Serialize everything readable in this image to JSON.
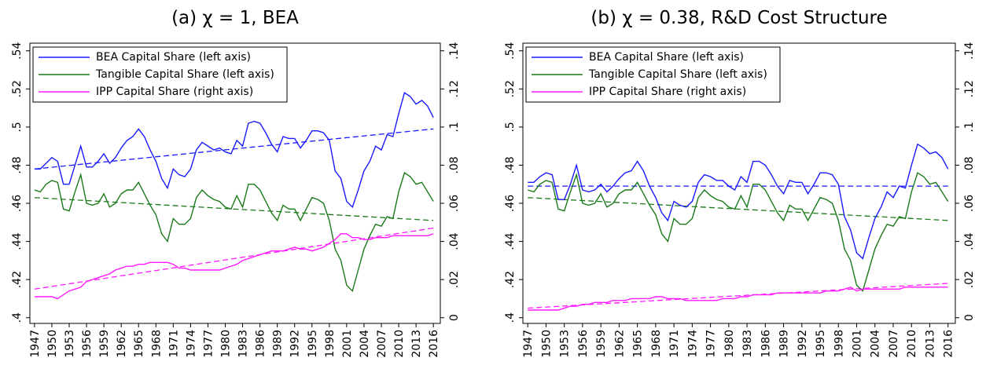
{
  "chart_data": [
    {
      "type": "line",
      "title": "(a) χ = 1, BEA",
      "x": [
        1947,
        1948,
        1949,
        1950,
        1951,
        1952,
        1953,
        1954,
        1955,
        1956,
        1957,
        1958,
        1959,
        1960,
        1961,
        1962,
        1963,
        1964,
        1965,
        1966,
        1967,
        1968,
        1969,
        1970,
        1971,
        1972,
        1973,
        1974,
        1975,
        1976,
        1977,
        1978,
        1979,
        1980,
        1981,
        1982,
        1983,
        1984,
        1985,
        1986,
        1987,
        1988,
        1989,
        1990,
        1991,
        1992,
        1993,
        1994,
        1995,
        1996,
        1997,
        1998,
        1999,
        2000,
        2001,
        2002,
        2003,
        2004,
        2005,
        2006,
        2007,
        2008,
        2009,
        2010,
        2011,
        2012,
        2013,
        2014,
        2015,
        2016
      ],
      "series": [
        {
          "name": "BEA Capital Share (left axis)",
          "color": "#1a1aff",
          "values": [
            0.478,
            0.478,
            0.481,
            0.484,
            0.482,
            0.47,
            0.47,
            0.48,
            0.49,
            0.479,
            0.479,
            0.482,
            0.486,
            0.481,
            0.484,
            0.489,
            0.493,
            0.495,
            0.499,
            0.495,
            0.488,
            0.482,
            0.473,
            0.468,
            0.478,
            0.475,
            0.474,
            0.478,
            0.488,
            0.492,
            0.49,
            0.488,
            0.489,
            0.487,
            0.486,
            0.493,
            0.49,
            0.502,
            0.503,
            0.502,
            0.497,
            0.491,
            0.487,
            0.495,
            0.494,
            0.494,
            0.489,
            0.493,
            0.498,
            0.498,
            0.497,
            0.493,
            0.477,
            0.473,
            0.461,
            0.458,
            0.467,
            0.477,
            0.482,
            0.49,
            0.488,
            0.496,
            0.495,
            0.507,
            0.518,
            0.516,
            0.512,
            0.514,
            0.511,
            0.505
          ]
        },
        {
          "name": "Tangible Capital Share (left axis)",
          "color": "#1a7a1a",
          "values": [
            0.467,
            0.466,
            0.47,
            0.472,
            0.471,
            0.457,
            0.456,
            0.466,
            0.475,
            0.46,
            0.459,
            0.46,
            0.465,
            0.458,
            0.46,
            0.465,
            0.467,
            0.467,
            0.471,
            0.465,
            0.459,
            0.454,
            0.444,
            0.44,
            0.452,
            0.449,
            0.449,
            0.452,
            0.463,
            0.467,
            0.464,
            0.462,
            0.461,
            0.458,
            0.457,
            0.464,
            0.458,
            0.47,
            0.47,
            0.467,
            0.461,
            0.455,
            0.451,
            0.459,
            0.457,
            0.457,
            0.451,
            0.457,
            0.463,
            0.462,
            0.46,
            0.451,
            0.436,
            0.43,
            0.417,
            0.414,
            0.425,
            0.436,
            0.443,
            0.449,
            0.448,
            0.453,
            0.452,
            0.466,
            0.476,
            0.474,
            0.47,
            0.471,
            0.466,
            0.461
          ]
        },
        {
          "name": "IPP Capital Share (right axis)",
          "color": "#ff1aff",
          "axis": "y2",
          "values": [
            0.011,
            0.011,
            0.011,
            0.011,
            0.01,
            0.012,
            0.014,
            0.015,
            0.016,
            0.019,
            0.02,
            0.021,
            0.022,
            0.023,
            0.025,
            0.026,
            0.027,
            0.027,
            0.028,
            0.028,
            0.029,
            0.029,
            0.029,
            0.029,
            0.028,
            0.026,
            0.026,
            0.025,
            0.025,
            0.025,
            0.025,
            0.025,
            0.025,
            0.026,
            0.027,
            0.028,
            0.03,
            0.031,
            0.032,
            0.033,
            0.034,
            0.035,
            0.035,
            0.035,
            0.036,
            0.037,
            0.036,
            0.036,
            0.035,
            0.036,
            0.037,
            0.039,
            0.041,
            0.044,
            0.044,
            0.042,
            0.042,
            0.041,
            0.041,
            0.042,
            0.042,
            0.042,
            0.043,
            0.043,
            0.043,
            0.043,
            0.043,
            0.043,
            0.043,
            0.044
          ]
        }
      ],
      "trends": [
        {
          "color": "#1a1aff",
          "x": [
            1947,
            2016
          ],
          "values": [
            0.478,
            0.499
          ]
        },
        {
          "color": "#1a7a1a",
          "x": [
            1947,
            2016
          ],
          "values": [
            0.463,
            0.451
          ]
        },
        {
          "color": "#ff1aff",
          "axis": "y2",
          "x": [
            1947,
            2016
          ],
          "values": [
            0.015,
            0.047
          ]
        }
      ],
      "xlim": [
        1946.2,
        2017.2
      ],
      "xticks": [
        1947,
        1950,
        1953,
        1956,
        1959,
        1962,
        1965,
        1968,
        1971,
        1974,
        1977,
        1980,
        1983,
        1986,
        1989,
        1992,
        1995,
        1998,
        2001,
        2004,
        2007,
        2010,
        2013,
        2016
      ],
      "ylim": [
        0.397,
        0.544
      ],
      "yticks": [
        {
          "value": 0.4,
          "label": ".4"
        },
        {
          "value": 0.42,
          "label": ".42"
        },
        {
          "value": 0.44,
          "label": ".44"
        },
        {
          "value": 0.46,
          "label": ".46"
        },
        {
          "value": 0.48,
          "label": ".48"
        },
        {
          "value": 0.5,
          "label": ".5"
        },
        {
          "value": 0.52,
          "label": ".52"
        },
        {
          "value": 0.54,
          "label": ".54"
        }
      ],
      "y2lim": [
        -0.003,
        0.144
      ],
      "y2ticks": [
        0,
        {
          "value": 0.02,
          "label": ".02"
        },
        {
          "value": 0.04,
          "label": ".04"
        },
        {
          "value": 0.06,
          "label": ".06"
        },
        {
          "value": 0.08,
          "label": ".08"
        },
        {
          "value": 0.1,
          "label": ".1"
        },
        {
          "value": 0.12,
          "label": ".12"
        },
        {
          "value": 0.14,
          "label": ".14"
        }
      ],
      "legend": "upper left"
    },
    {
      "type": "line",
      "title": "(b) χ = 0.38, R&D Cost Structure",
      "x": [
        1947,
        1948,
        1949,
        1950,
        1951,
        1952,
        1953,
        1954,
        1955,
        1956,
        1957,
        1958,
        1959,
        1960,
        1961,
        1962,
        1963,
        1964,
        1965,
        1966,
        1967,
        1968,
        1969,
        1970,
        1971,
        1972,
        1973,
        1974,
        1975,
        1976,
        1977,
        1978,
        1979,
        1980,
        1981,
        1982,
        1983,
        1984,
        1985,
        1986,
        1987,
        1988,
        1989,
        1990,
        1991,
        1992,
        1993,
        1994,
        1995,
        1996,
        1997,
        1998,
        1999,
        2000,
        2001,
        2002,
        2003,
        2004,
        2005,
        2006,
        2007,
        2008,
        2009,
        2010,
        2011,
        2012,
        2013,
        2014,
        2015,
        2016
      ],
      "series": [
        {
          "name": "BEA Capital Share (left axis)",
          "color": "#1a1aff",
          "values": [
            0.471,
            0.471,
            0.474,
            0.476,
            0.475,
            0.462,
            0.462,
            0.47,
            0.48,
            0.467,
            0.466,
            0.467,
            0.47,
            0.466,
            0.469,
            0.473,
            0.476,
            0.477,
            0.482,
            0.477,
            0.469,
            0.463,
            0.455,
            0.451,
            0.461,
            0.459,
            0.458,
            0.461,
            0.471,
            0.475,
            0.474,
            0.472,
            0.472,
            0.469,
            0.467,
            0.474,
            0.471,
            0.482,
            0.482,
            0.48,
            0.475,
            0.469,
            0.465,
            0.472,
            0.471,
            0.471,
            0.465,
            0.47,
            0.476,
            0.476,
            0.475,
            0.47,
            0.453,
            0.446,
            0.434,
            0.431,
            0.442,
            0.452,
            0.458,
            0.466,
            0.463,
            0.469,
            0.468,
            0.48,
            0.491,
            0.489,
            0.486,
            0.487,
            0.484,
            0.478
          ]
        },
        {
          "name": "Tangible Capital Share (left axis)",
          "color": "#1a7a1a",
          "values": [
            0.467,
            0.466,
            0.47,
            0.472,
            0.471,
            0.457,
            0.456,
            0.466,
            0.475,
            0.46,
            0.459,
            0.46,
            0.465,
            0.458,
            0.46,
            0.465,
            0.467,
            0.467,
            0.471,
            0.465,
            0.459,
            0.454,
            0.444,
            0.44,
            0.452,
            0.449,
            0.449,
            0.452,
            0.463,
            0.467,
            0.464,
            0.462,
            0.461,
            0.458,
            0.457,
            0.464,
            0.458,
            0.47,
            0.47,
            0.467,
            0.461,
            0.455,
            0.451,
            0.459,
            0.457,
            0.457,
            0.451,
            0.457,
            0.463,
            0.462,
            0.46,
            0.451,
            0.436,
            0.43,
            0.417,
            0.414,
            0.425,
            0.436,
            0.443,
            0.449,
            0.448,
            0.453,
            0.452,
            0.466,
            0.476,
            0.474,
            0.47,
            0.471,
            0.466,
            0.461
          ]
        },
        {
          "name": "IPP Capital Share (right axis)",
          "color": "#ff1aff",
          "axis": "y2",
          "values": [
            0.004,
            0.004,
            0.004,
            0.004,
            0.004,
            0.004,
            0.005,
            0.006,
            0.006,
            0.007,
            0.007,
            0.008,
            0.008,
            0.008,
            0.009,
            0.009,
            0.009,
            0.01,
            0.01,
            0.01,
            0.01,
            0.011,
            0.011,
            0.01,
            0.01,
            0.01,
            0.009,
            0.009,
            0.009,
            0.009,
            0.009,
            0.009,
            0.01,
            0.01,
            0.01,
            0.011,
            0.011,
            0.012,
            0.012,
            0.012,
            0.012,
            0.013,
            0.013,
            0.013,
            0.013,
            0.013,
            0.013,
            0.013,
            0.013,
            0.014,
            0.014,
            0.014,
            0.015,
            0.016,
            0.014,
            0.015,
            0.015,
            0.015,
            0.015,
            0.015,
            0.015,
            0.015,
            0.016,
            0.016,
            0.016,
            0.016,
            0.016,
            0.016,
            0.016,
            0.016
          ]
        }
      ],
      "trends": [
        {
          "color": "#1a1aff",
          "x": [
            1947,
            2016
          ],
          "values": [
            0.469,
            0.469
          ]
        },
        {
          "color": "#1a7a1a",
          "x": [
            1947,
            2016
          ],
          "values": [
            0.463,
            0.451
          ]
        },
        {
          "color": "#ff1aff",
          "axis": "y2",
          "x": [
            1947,
            2016
          ],
          "values": [
            0.005,
            0.018
          ]
        }
      ],
      "xlim": [
        1946.2,
        2017.2
      ],
      "xticks": [
        1947,
        1950,
        1953,
        1956,
        1959,
        1962,
        1965,
        1968,
        1971,
        1974,
        1977,
        1980,
        1983,
        1986,
        1989,
        1992,
        1995,
        1998,
        2001,
        2004,
        2007,
        2010,
        2013,
        2016
      ],
      "ylim": [
        0.397,
        0.544
      ],
      "yticks": [
        {
          "value": 0.4,
          "label": ".4"
        },
        {
          "value": 0.42,
          "label": ".42"
        },
        {
          "value": 0.44,
          "label": ".44"
        },
        {
          "value": 0.46,
          "label": ".46"
        },
        {
          "value": 0.48,
          "label": ".48"
        },
        {
          "value": 0.5,
          "label": ".5"
        },
        {
          "value": 0.52,
          "label": ".52"
        },
        {
          "value": 0.54,
          "label": ".54"
        }
      ],
      "y2lim": [
        -0.003,
        0.144
      ],
      "y2ticks": [
        0,
        {
          "value": 0.02,
          "label": ".02"
        },
        {
          "value": 0.04,
          "label": ".04"
        },
        {
          "value": 0.06,
          "label": ".06"
        },
        {
          "value": 0.08,
          "label": ".08"
        },
        {
          "value": 0.1,
          "label": ".1"
        },
        {
          "value": 0.12,
          "label": ".12"
        },
        {
          "value": 0.14,
          "label": ".14"
        }
      ],
      "legend": "upper left"
    }
  ]
}
